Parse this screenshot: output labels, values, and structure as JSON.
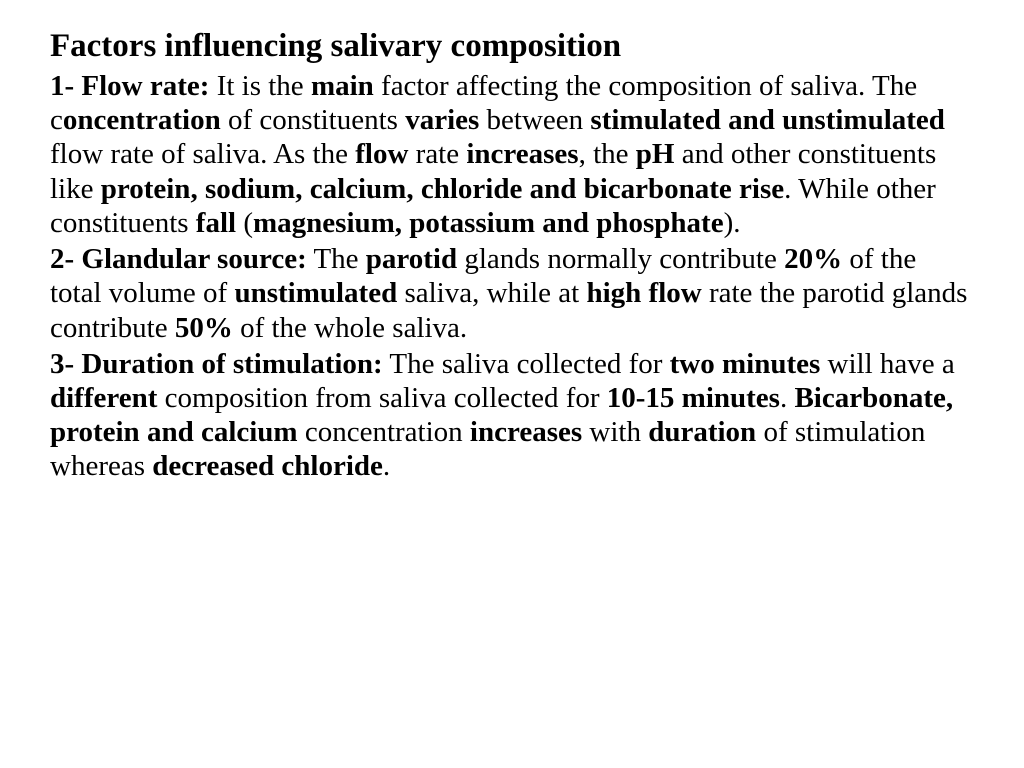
{
  "document": {
    "title": "Factors influencing salivary composition",
    "font_family": "Times New Roman",
    "title_fontsize": 33,
    "body_fontsize": 29,
    "text_color": "#000000",
    "background_color": "#ffffff",
    "p1": {
      "lead": "1- Flow rate:",
      "t1": " It is the ",
      "b1": "main",
      "t2": " factor affecting the composition of saliva. The c",
      "b2": "oncentration",
      "t3": " of constituents ",
      "b3": "varies",
      "t4": " between ",
      "b4": "stimulated and unstimulated",
      "t5": " flow rate of saliva. As the ",
      "b5": "flow",
      "t6": " rate ",
      "b6": "increases",
      "t7": ", the ",
      "b7": "pH",
      "t8": " and other constituents like ",
      "b8": "protein, sodium, calcium, chloride and bicarbonate rise",
      "t9": ". While other constituents ",
      "b9": "fall",
      "t10": " (",
      "b10": "magnesium, potassium and phosphate",
      "t11": ")."
    },
    "p2": {
      "lead": "2- Glandular source:",
      "t1": " The ",
      "b1": "parotid",
      "t2": " glands normally contribute ",
      "b2": "20%",
      "t3": " of the total volume of ",
      "b3": "unstimulated",
      "t4": " saliva, while at ",
      "b4": "high flow",
      "t5": " rate the parotid glands contribute ",
      "b5": "50%",
      "t6": " of the whole saliva."
    },
    "p3": {
      "lead": "3- Duration of stimulation:",
      "t1": " The saliva collected for ",
      "b1": "two minutes",
      "t2": " will have a ",
      "b2": "different",
      "t3": " composition from saliva collected for ",
      "b3": "10-15 minutes",
      "t4": ". ",
      "b4": "Bicarbonate, protein and calcium",
      "t5": " concentration ",
      "b5": "increases",
      "t6": " with ",
      "b6": "duration",
      "t7": " of stimulation whereas ",
      "b7": "decreased chloride",
      "t8": "."
    }
  }
}
